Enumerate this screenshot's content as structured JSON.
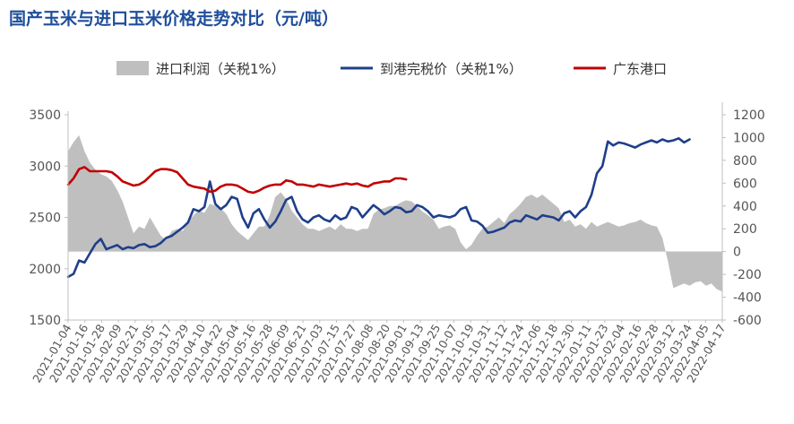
{
  "chart_data": {
    "type": "area+line",
    "title": "国产玉米与进口玉米价格走势对比（元/吨）",
    "left_axis": {
      "min": 1500,
      "max": 3500,
      "ticks": [
        1500,
        2000,
        2500,
        3000,
        3500
      ]
    },
    "right_axis": {
      "min": -600,
      "max": 1200,
      "ticks": [
        -600,
        -400,
        -200,
        0,
        200,
        400,
        600,
        800,
        1000,
        1200
      ]
    },
    "categories": [
      "2021-01-04",
      "2021-01-16",
      "2021-01-28",
      "2021-02-09",
      "2021-02-21",
      "2021-03-05",
      "2021-03-17",
      "2021-03-29",
      "2021-04-10",
      "2021-04-22",
      "2021-05-04",
      "2021-05-16",
      "2021-05-28",
      "2021-06-09",
      "2021-06-21",
      "2021-07-03",
      "2021-07-15",
      "2021-07-27",
      "2021-08-08",
      "2021-08-20",
      "2021-09-01",
      "2021-09-13",
      "2021-09-25",
      "2021-10-07",
      "2021-10-19",
      "2021-10-31",
      "2021-11-12",
      "2021-11-24",
      "2021-12-06",
      "2021-12-18",
      "2021-12-30",
      "2022-01-11",
      "2022-01-23",
      "2022-02-04",
      "2022-02-16",
      "2022-02-28",
      "2022-03-12",
      "2022-03-24",
      "2022-04-05",
      "2022-04-17"
    ],
    "series": [
      {
        "name": "进口利润（关税1%）",
        "type": "area",
        "axis": "right",
        "color": "#bfbfbf",
        "points": [
          [
            0,
            880
          ],
          [
            1,
            960
          ],
          [
            2,
            1020
          ],
          [
            3,
            880
          ],
          [
            4,
            780
          ],
          [
            5,
            720
          ],
          [
            6,
            680
          ],
          [
            7,
            660
          ],
          [
            8,
            620
          ],
          [
            9,
            540
          ],
          [
            10,
            440
          ],
          [
            11,
            300
          ],
          [
            12,
            160
          ],
          [
            13,
            220
          ],
          [
            14,
            200
          ],
          [
            15,
            300
          ],
          [
            16,
            220
          ],
          [
            17,
            140
          ],
          [
            18,
            100
          ],
          [
            19,
            180
          ],
          [
            20,
            200
          ],
          [
            21,
            180
          ],
          [
            22,
            260
          ],
          [
            23,
            320
          ],
          [
            24,
            360
          ],
          [
            25,
            340
          ],
          [
            26,
            420
          ],
          [
            27,
            400
          ],
          [
            28,
            380
          ],
          [
            29,
            330
          ],
          [
            30,
            240
          ],
          [
            31,
            180
          ],
          [
            32,
            140
          ],
          [
            33,
            100
          ],
          [
            34,
            160
          ],
          [
            35,
            220
          ],
          [
            36,
            220
          ],
          [
            37,
            320
          ],
          [
            38,
            480
          ],
          [
            39,
            520
          ],
          [
            40,
            460
          ],
          [
            41,
            360
          ],
          [
            42,
            300
          ],
          [
            43,
            240
          ],
          [
            44,
            200
          ],
          [
            45,
            200
          ],
          [
            46,
            180
          ],
          [
            47,
            200
          ],
          [
            48,
            220
          ],
          [
            49,
            190
          ],
          [
            50,
            240
          ],
          [
            51,
            200
          ],
          [
            52,
            200
          ],
          [
            53,
            180
          ],
          [
            54,
            200
          ],
          [
            55,
            200
          ],
          [
            56,
            330
          ],
          [
            57,
            370
          ],
          [
            58,
            380
          ],
          [
            59,
            400
          ],
          [
            60,
            400
          ],
          [
            61,
            430
          ],
          [
            62,
            450
          ],
          [
            63,
            440
          ],
          [
            64,
            400
          ],
          [
            65,
            350
          ],
          [
            66,
            320
          ],
          [
            67,
            280
          ],
          [
            68,
            200
          ],
          [
            69,
            220
          ],
          [
            70,
            230
          ],
          [
            71,
            200
          ],
          [
            72,
            80
          ],
          [
            73,
            20
          ],
          [
            74,
            60
          ],
          [
            75,
            140
          ],
          [
            76,
            200
          ],
          [
            77,
            220
          ],
          [
            78,
            260
          ],
          [
            79,
            300
          ],
          [
            80,
            250
          ],
          [
            81,
            330
          ],
          [
            82,
            370
          ],
          [
            83,
            420
          ],
          [
            84,
            480
          ],
          [
            85,
            500
          ],
          [
            86,
            470
          ],
          [
            87,
            500
          ],
          [
            88,
            460
          ],
          [
            89,
            420
          ],
          [
            90,
            380
          ],
          [
            91,
            260
          ],
          [
            92,
            280
          ],
          [
            93,
            220
          ],
          [
            94,
            240
          ],
          [
            95,
            200
          ],
          [
            96,
            260
          ],
          [
            97,
            220
          ],
          [
            98,
            240
          ],
          [
            99,
            260
          ],
          [
            100,
            240
          ],
          [
            101,
            220
          ],
          [
            102,
            230
          ],
          [
            103,
            250
          ],
          [
            104,
            260
          ],
          [
            105,
            280
          ],
          [
            106,
            250
          ],
          [
            107,
            230
          ],
          [
            108,
            220
          ],
          [
            109,
            120
          ],
          [
            110,
            -80
          ],
          [
            111,
            -320
          ],
          [
            112,
            -300
          ],
          [
            113,
            -280
          ],
          [
            114,
            -300
          ],
          [
            115,
            -270
          ],
          [
            116,
            -260
          ],
          [
            117,
            -300
          ],
          [
            118,
            -280
          ],
          [
            119,
            -330
          ],
          [
            120,
            -350
          ]
        ]
      },
      {
        "name": "到港完税价（关税1%）",
        "type": "line",
        "axis": "left",
        "color": "#1f3f8a",
        "points": [
          [
            0,
            1920
          ],
          [
            1,
            1950
          ],
          [
            2,
            2080
          ],
          [
            3,
            2060
          ],
          [
            4,
            2150
          ],
          [
            5,
            2240
          ],
          [
            6,
            2290
          ],
          [
            7,
            2190
          ],
          [
            8,
            2210
          ],
          [
            9,
            2230
          ],
          [
            10,
            2190
          ],
          [
            11,
            2210
          ],
          [
            12,
            2200
          ],
          [
            13,
            2230
          ],
          [
            14,
            2240
          ],
          [
            15,
            2210
          ],
          [
            16,
            2220
          ],
          [
            17,
            2250
          ],
          [
            18,
            2300
          ],
          [
            19,
            2320
          ],
          [
            20,
            2360
          ],
          [
            21,
            2400
          ],
          [
            22,
            2450
          ],
          [
            23,
            2580
          ],
          [
            24,
            2560
          ],
          [
            25,
            2600
          ],
          [
            26,
            2850
          ],
          [
            27,
            2630
          ],
          [
            28,
            2580
          ],
          [
            29,
            2620
          ],
          [
            30,
            2700
          ],
          [
            31,
            2680
          ],
          [
            32,
            2500
          ],
          [
            33,
            2400
          ],
          [
            34,
            2540
          ],
          [
            35,
            2580
          ],
          [
            36,
            2480
          ],
          [
            37,
            2400
          ],
          [
            38,
            2460
          ],
          [
            39,
            2560
          ],
          [
            40,
            2670
          ],
          [
            41,
            2700
          ],
          [
            42,
            2560
          ],
          [
            43,
            2480
          ],
          [
            44,
            2450
          ],
          [
            45,
            2500
          ],
          [
            46,
            2520
          ],
          [
            47,
            2480
          ],
          [
            48,
            2460
          ],
          [
            49,
            2520
          ],
          [
            50,
            2480
          ],
          [
            51,
            2500
          ],
          [
            52,
            2600
          ],
          [
            53,
            2580
          ],
          [
            54,
            2500
          ],
          [
            55,
            2560
          ],
          [
            56,
            2620
          ],
          [
            57,
            2580
          ],
          [
            58,
            2530
          ],
          [
            59,
            2560
          ],
          [
            60,
            2600
          ],
          [
            61,
            2590
          ],
          [
            62,
            2550
          ],
          [
            63,
            2560
          ],
          [
            64,
            2620
          ],
          [
            65,
            2600
          ],
          [
            66,
            2560
          ],
          [
            67,
            2500
          ],
          [
            68,
            2520
          ],
          [
            69,
            2510
          ],
          [
            70,
            2500
          ],
          [
            71,
            2520
          ],
          [
            72,
            2580
          ],
          [
            73,
            2600
          ],
          [
            74,
            2470
          ],
          [
            75,
            2460
          ],
          [
            76,
            2420
          ],
          [
            77,
            2350
          ],
          [
            78,
            2360
          ],
          [
            79,
            2380
          ],
          [
            80,
            2400
          ],
          [
            81,
            2450
          ],
          [
            82,
            2470
          ],
          [
            83,
            2460
          ],
          [
            84,
            2520
          ],
          [
            85,
            2500
          ],
          [
            86,
            2480
          ],
          [
            87,
            2520
          ],
          [
            88,
            2510
          ],
          [
            89,
            2500
          ],
          [
            90,
            2470
          ],
          [
            91,
            2540
          ],
          [
            92,
            2560
          ],
          [
            93,
            2500
          ],
          [
            94,
            2560
          ],
          [
            95,
            2600
          ],
          [
            96,
            2720
          ],
          [
            97,
            2930
          ],
          [
            98,
            3000
          ],
          [
            99,
            3240
          ],
          [
            100,
            3200
          ],
          [
            101,
            3230
          ],
          [
            102,
            3220
          ],
          [
            103,
            3200
          ],
          [
            104,
            3180
          ],
          [
            105,
            3210
          ],
          [
            106,
            3230
          ],
          [
            107,
            3250
          ],
          [
            108,
            3230
          ],
          [
            109,
            3260
          ],
          [
            110,
            3240
          ],
          [
            111,
            3250
          ],
          [
            112,
            3270
          ],
          [
            113,
            3230
          ],
          [
            114,
            3260
          ]
        ]
      },
      {
        "name": "广东港口",
        "type": "line",
        "axis": "left",
        "color": "#c00000",
        "points": [
          [
            0,
            2820
          ],
          [
            1,
            2880
          ],
          [
            2,
            2970
          ],
          [
            3,
            2990
          ],
          [
            4,
            2950
          ],
          [
            5,
            2950
          ],
          [
            6,
            2950
          ],
          [
            7,
            2950
          ],
          [
            8,
            2940
          ],
          [
            9,
            2900
          ],
          [
            10,
            2850
          ],
          [
            11,
            2830
          ],
          [
            12,
            2810
          ],
          [
            13,
            2820
          ],
          [
            14,
            2850
          ],
          [
            15,
            2900
          ],
          [
            16,
            2950
          ],
          [
            17,
            2970
          ],
          [
            18,
            2970
          ],
          [
            19,
            2960
          ],
          [
            20,
            2940
          ],
          [
            21,
            2880
          ],
          [
            22,
            2820
          ],
          [
            23,
            2800
          ],
          [
            24,
            2790
          ],
          [
            25,
            2780
          ],
          [
            26,
            2750
          ],
          [
            27,
            2760
          ],
          [
            28,
            2800
          ],
          [
            29,
            2820
          ],
          [
            30,
            2820
          ],
          [
            31,
            2810
          ],
          [
            32,
            2780
          ],
          [
            33,
            2750
          ],
          [
            34,
            2740
          ],
          [
            35,
            2760
          ],
          [
            36,
            2790
          ],
          [
            37,
            2810
          ],
          [
            38,
            2820
          ],
          [
            39,
            2820
          ],
          [
            40,
            2860
          ],
          [
            41,
            2850
          ],
          [
            42,
            2820
          ],
          [
            43,
            2820
          ],
          [
            44,
            2810
          ],
          [
            45,
            2800
          ],
          [
            46,
            2820
          ],
          [
            47,
            2810
          ],
          [
            48,
            2800
          ],
          [
            49,
            2810
          ],
          [
            50,
            2820
          ],
          [
            51,
            2830
          ],
          [
            52,
            2820
          ],
          [
            53,
            2830
          ],
          [
            54,
            2810
          ],
          [
            55,
            2800
          ],
          [
            56,
            2830
          ],
          [
            57,
            2840
          ],
          [
            58,
            2850
          ],
          [
            59,
            2850
          ],
          [
            60,
            2880
          ],
          [
            61,
            2880
          ],
          [
            62,
            2870
          ]
        ]
      }
    ],
    "legend_position": "top",
    "grid": false
  }
}
